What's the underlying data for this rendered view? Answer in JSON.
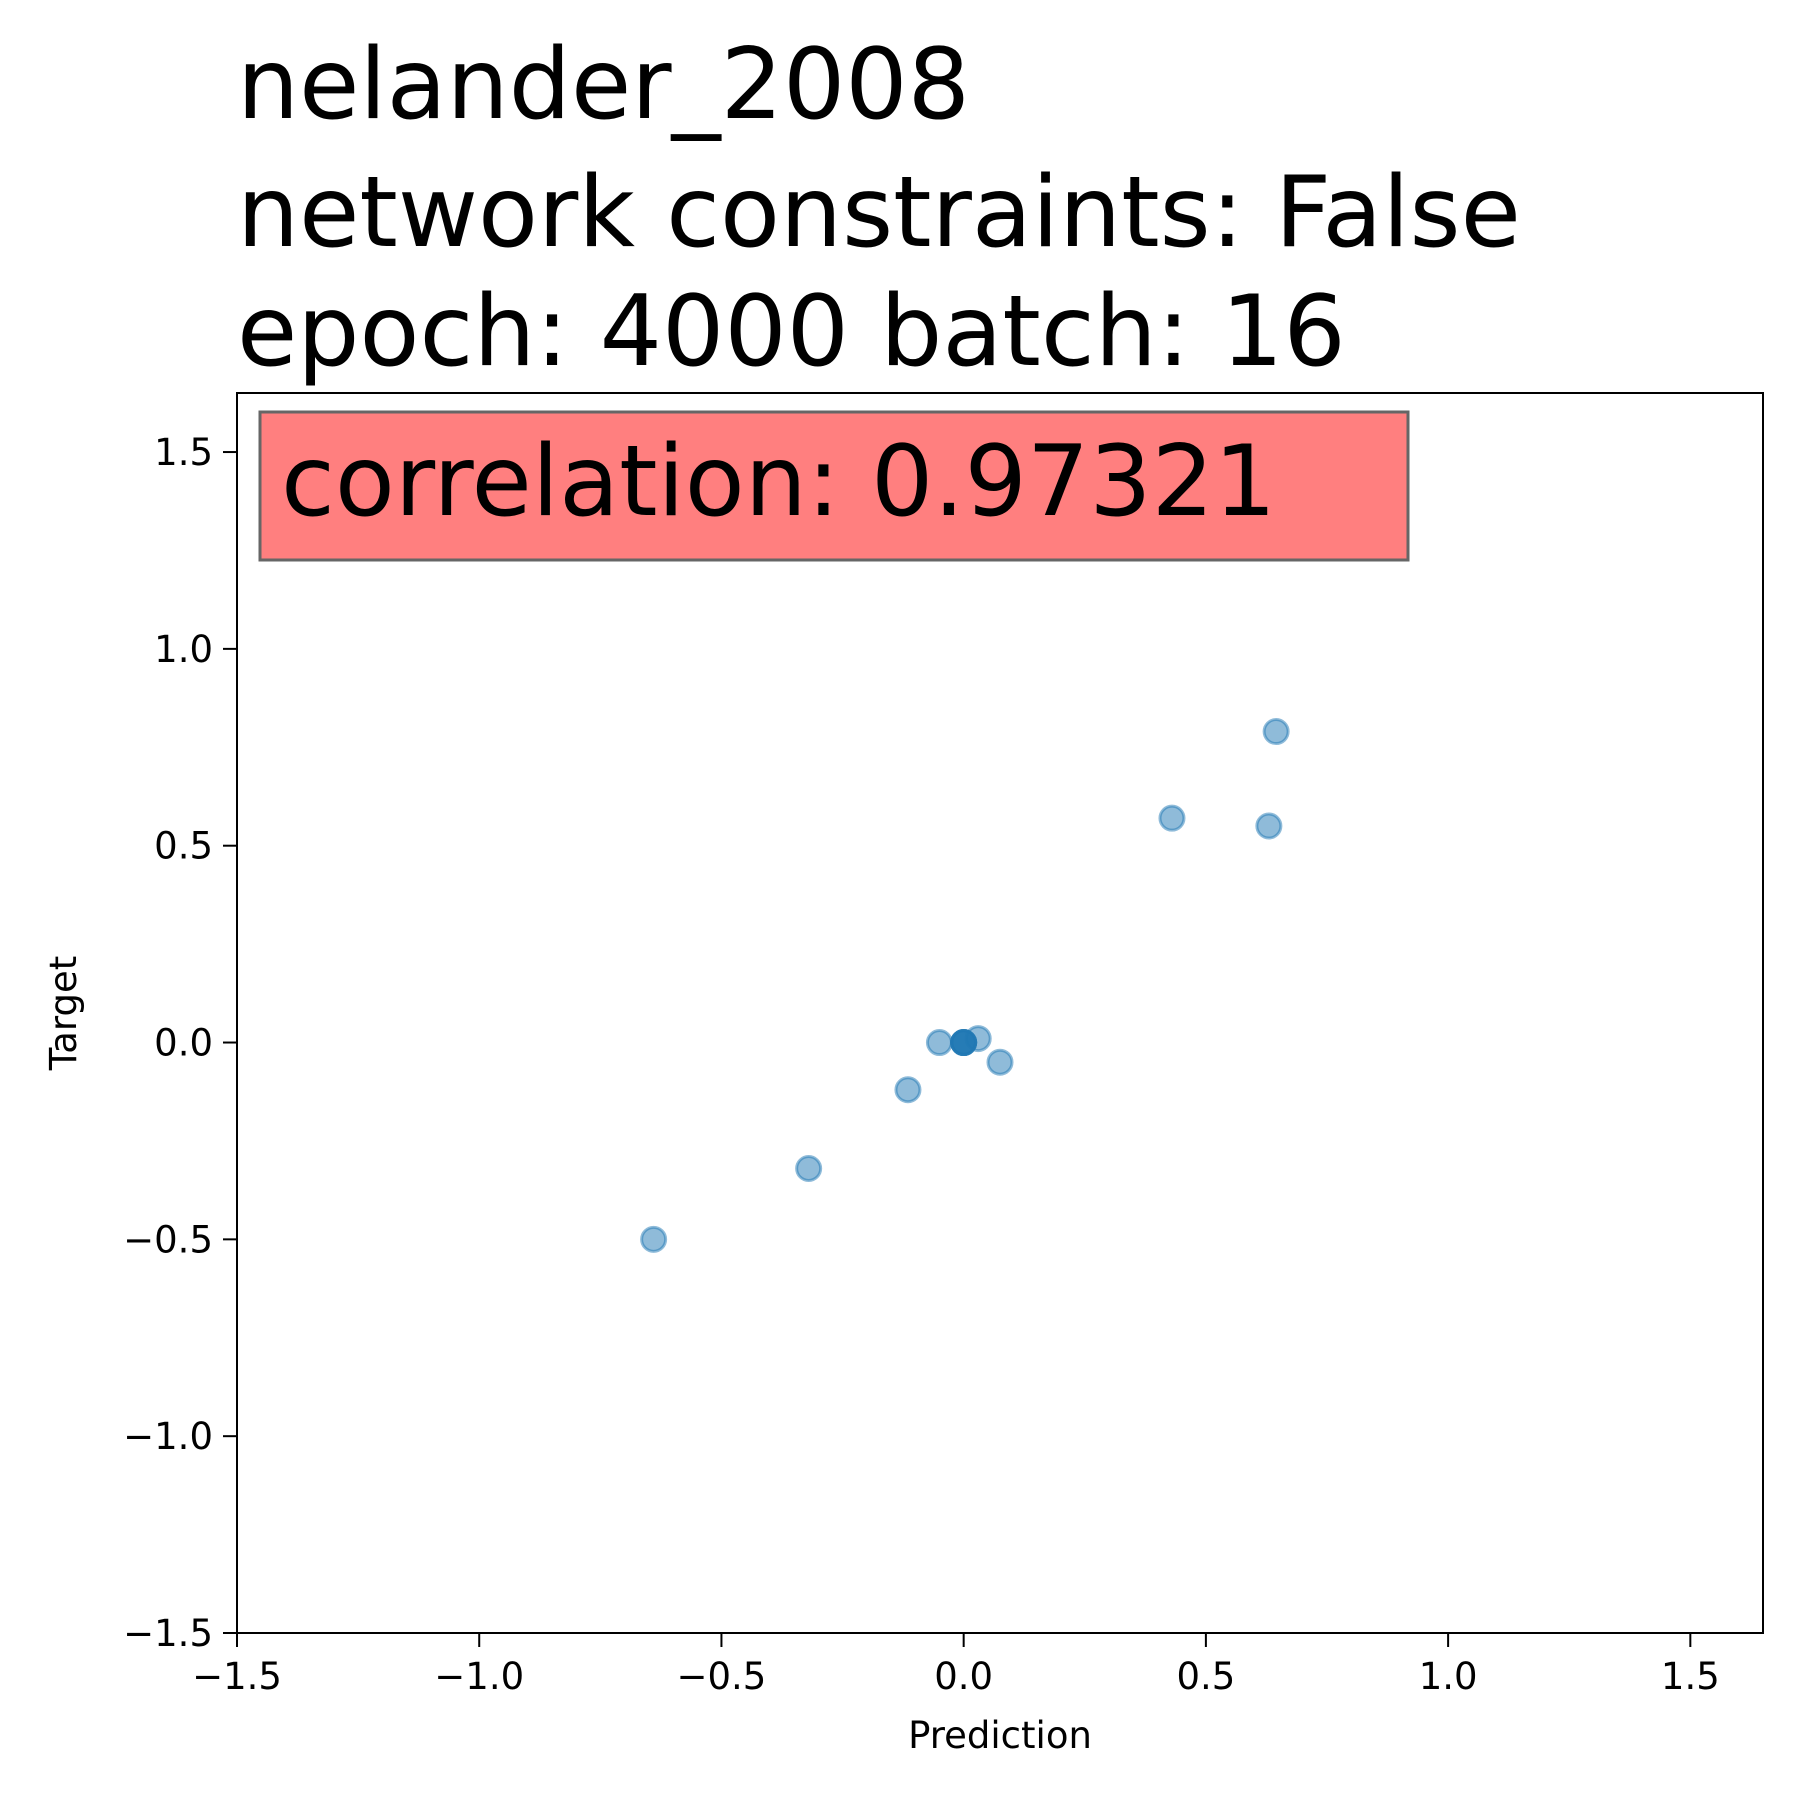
{
  "chart_data": {
    "type": "scatter",
    "title_lines": [
      "nelander_2008",
      "network constraints: False",
      "epoch: 4000 batch: 16"
    ],
    "xlabel": "Prediction",
    "ylabel": "Target",
    "xlim": [
      -1.5,
      1.65
    ],
    "ylim": [
      -1.5,
      1.65
    ],
    "xticks": [
      -1.5,
      -1.0,
      -0.5,
      0.0,
      0.5,
      1.0,
      1.5
    ],
    "yticks": [
      -1.5,
      -1.0,
      -0.5,
      0.0,
      0.5,
      1.0,
      1.5
    ],
    "xtick_labels": [
      "−1.5",
      "−1.0",
      "−0.5",
      "0.0",
      "0.5",
      "1.0",
      "1.5"
    ],
    "ytick_labels": [
      "−1.5",
      "−1.0",
      "−0.5",
      "0.0",
      "0.5",
      "1.0",
      "1.5"
    ],
    "grid": false,
    "legend": null,
    "annotation": {
      "text": "correlation: 0.97321",
      "background_color": "#ff7f7f",
      "placement": "top-left"
    },
    "marker_color": "#1f77b4",
    "marker_alpha": 0.5,
    "points": [
      {
        "x": -0.64,
        "y": -0.5
      },
      {
        "x": -0.32,
        "y": -0.32
      },
      {
        "x": -0.115,
        "y": -0.12
      },
      {
        "x": -0.05,
        "y": 0.0
      },
      {
        "x": 0.0,
        "y": 0.0
      },
      {
        "x": 0.0,
        "y": 0.0
      },
      {
        "x": 0.0,
        "y": 0.0
      },
      {
        "x": 0.0,
        "y": 0.0
      },
      {
        "x": 0.0,
        "y": 0.0
      },
      {
        "x": 0.03,
        "y": 0.01
      },
      {
        "x": 0.075,
        "y": -0.05
      },
      {
        "x": 0.43,
        "y": 0.57
      },
      {
        "x": 0.63,
        "y": 0.55
      },
      {
        "x": 0.645,
        "y": 0.79
      }
    ]
  }
}
